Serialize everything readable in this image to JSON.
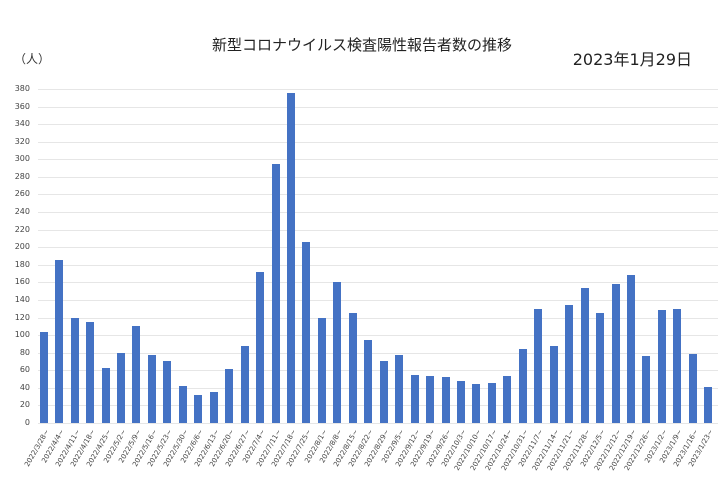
{
  "header": {
    "title": "新型コロナウイルス検査陽性報告者数の推移",
    "date": "2023年1月29日",
    "unit": "（人）"
  },
  "colors": {
    "bar": "#4472c4",
    "grid": "#e6e6e6"
  },
  "chart_data": {
    "type": "bar",
    "title": "新型コロナウイルス検査陽性報告者数の推移",
    "subtitle": "2023年1月29日",
    "xlabel": "",
    "ylabel": "（人）",
    "ylim": [
      0,
      380
    ],
    "yticks": [
      0,
      20,
      40,
      60,
      80,
      100,
      120,
      140,
      160,
      180,
      200,
      220,
      240,
      260,
      280,
      300,
      320,
      340,
      360,
      380
    ],
    "grid": true,
    "legend": null,
    "categories": [
      "2022/3/28~",
      "2022/4/4~",
      "2022/4/11~",
      "2022/4/18~",
      "2022/4/25~",
      "2022/5/2~",
      "2022/5/9~",
      "2022/5/16~",
      "2022/5/23~",
      "2022/5/30~",
      "2022/6/6~",
      "2022/6/13~",
      "2022/6/20~",
      "2022/6/27~",
      "2022/7/4~",
      "2022/7/11~",
      "2022/7/18~",
      "2022/7/25~",
      "2022/8/1~",
      "2022/8/8~",
      "2022/8/15~",
      "2022/8/22~",
      "2022/8/29~",
      "2022/9/5~",
      "2022/9/12~",
      "2022/9/19~",
      "2022/9/26~",
      "2022/10/3~",
      "2022/10/10~",
      "2022/10/17~",
      "2022/10/24~",
      "2022/10/31~",
      "2022/11/7~",
      "2022/11/14~",
      "2022/11/21~",
      "2022/11/28~",
      "2022/12/5~",
      "2022/12/12~",
      "2022/12/19~",
      "2022/12/26~",
      "2023/1/2~",
      "2023/1/9~",
      "2023/1/16~",
      "2023/1/23~"
    ],
    "values": [
      104,
      185,
      120,
      115,
      63,
      80,
      110,
      77,
      70,
      42,
      32,
      35,
      61,
      88,
      172,
      295,
      375,
      206,
      120,
      161,
      125,
      94,
      70,
      77,
      55,
      54,
      52,
      48,
      44,
      46,
      54,
      84,
      130,
      88,
      134,
      154,
      125,
      158,
      168,
      76,
      129,
      130,
      79,
      41
    ]
  }
}
